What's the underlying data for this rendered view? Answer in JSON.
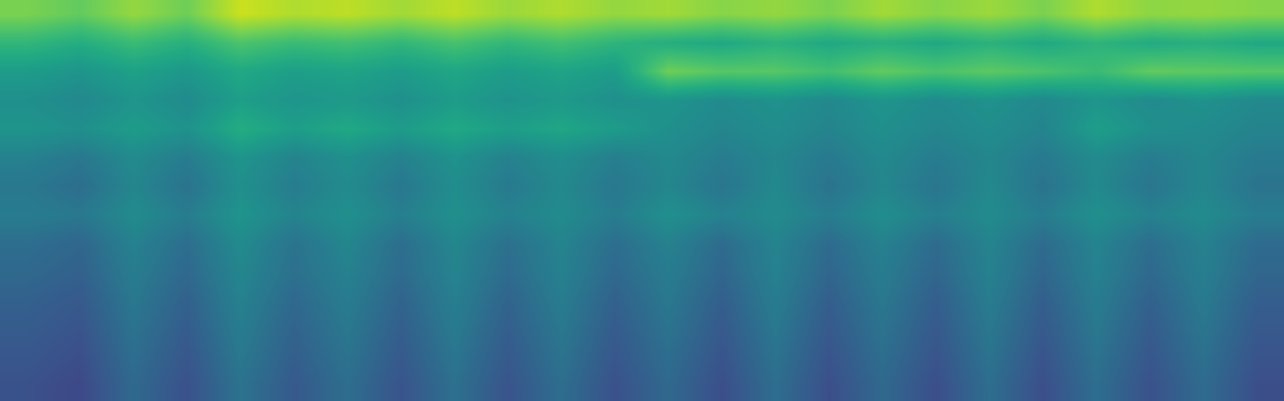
{
  "chart_data": {
    "type": "heatmap",
    "color": "viridis",
    "tick_labels": false,
    "color_range": [
      0,
      1
    ],
    "cells": [
      [
        0.8,
        0.76,
        0.84,
        0.78,
        0.92,
        0.88,
        0.9,
        0.86,
        0.9,
        0.85,
        0.88,
        0.84,
        0.86,
        0.82,
        0.84,
        0.8,
        0.86,
        0.82,
        0.85,
        0.8,
        0.88,
        0.83,
        0.84,
        0.82
      ],
      [
        0.66,
        0.62,
        0.68,
        0.63,
        0.72,
        0.68,
        0.7,
        0.66,
        0.71,
        0.66,
        0.7,
        0.65,
        0.62,
        0.6,
        0.64,
        0.6,
        0.63,
        0.6,
        0.64,
        0.6,
        0.65,
        0.61,
        0.63,
        0.6
      ],
      [
        0.55,
        0.52,
        0.57,
        0.53,
        0.6,
        0.56,
        0.58,
        0.55,
        0.59,
        0.55,
        0.58,
        0.55,
        0.78,
        0.74,
        0.74,
        0.7,
        0.76,
        0.72,
        0.75,
        0.72,
        0.68,
        0.76,
        0.75,
        0.74
      ],
      [
        0.5,
        0.47,
        0.52,
        0.48,
        0.56,
        0.52,
        0.54,
        0.5,
        0.55,
        0.51,
        0.54,
        0.5,
        0.52,
        0.48,
        0.51,
        0.47,
        0.52,
        0.48,
        0.51,
        0.47,
        0.52,
        0.48,
        0.51,
        0.47
      ],
      [
        0.52,
        0.5,
        0.55,
        0.51,
        0.62,
        0.56,
        0.6,
        0.55,
        0.6,
        0.56,
        0.59,
        0.55,
        0.5,
        0.46,
        0.49,
        0.45,
        0.5,
        0.46,
        0.49,
        0.45,
        0.56,
        0.5,
        0.48,
        0.45
      ],
      [
        0.44,
        0.4,
        0.48,
        0.42,
        0.52,
        0.45,
        0.5,
        0.44,
        0.51,
        0.44,
        0.49,
        0.43,
        0.47,
        0.42,
        0.46,
        0.41,
        0.47,
        0.42,
        0.46,
        0.41,
        0.48,
        0.42,
        0.46,
        0.41
      ],
      [
        0.4,
        0.36,
        0.46,
        0.38,
        0.5,
        0.42,
        0.48,
        0.4,
        0.49,
        0.41,
        0.47,
        0.4,
        0.46,
        0.39,
        0.47,
        0.38,
        0.46,
        0.39,
        0.47,
        0.38,
        0.47,
        0.39,
        0.46,
        0.38
      ],
      [
        0.42,
        0.4,
        0.48,
        0.42,
        0.52,
        0.45,
        0.5,
        0.43,
        0.5,
        0.44,
        0.48,
        0.42,
        0.5,
        0.44,
        0.48,
        0.42,
        0.49,
        0.43,
        0.48,
        0.42,
        0.5,
        0.44,
        0.48,
        0.42
      ],
      [
        0.36,
        0.33,
        0.44,
        0.36,
        0.48,
        0.38,
        0.46,
        0.36,
        0.46,
        0.37,
        0.45,
        0.36,
        0.44,
        0.35,
        0.45,
        0.35,
        0.44,
        0.35,
        0.45,
        0.35,
        0.45,
        0.36,
        0.44,
        0.35
      ],
      [
        0.34,
        0.31,
        0.42,
        0.34,
        0.46,
        0.37,
        0.44,
        0.35,
        0.45,
        0.35,
        0.44,
        0.34,
        0.42,
        0.33,
        0.44,
        0.33,
        0.42,
        0.33,
        0.44,
        0.33,
        0.44,
        0.34,
        0.43,
        0.33
      ],
      [
        0.31,
        0.28,
        0.4,
        0.31,
        0.44,
        0.34,
        0.42,
        0.32,
        0.43,
        0.32,
        0.42,
        0.31,
        0.4,
        0.3,
        0.42,
        0.3,
        0.4,
        0.3,
        0.42,
        0.3,
        0.42,
        0.31,
        0.41,
        0.3
      ],
      [
        0.29,
        0.26,
        0.38,
        0.29,
        0.42,
        0.32,
        0.4,
        0.3,
        0.41,
        0.3,
        0.4,
        0.29,
        0.38,
        0.28,
        0.4,
        0.28,
        0.38,
        0.28,
        0.4,
        0.28,
        0.4,
        0.29,
        0.39,
        0.28
      ],
      [
        0.27,
        0.24,
        0.36,
        0.27,
        0.4,
        0.3,
        0.38,
        0.28,
        0.39,
        0.28,
        0.38,
        0.27,
        0.36,
        0.26,
        0.38,
        0.26,
        0.36,
        0.26,
        0.38,
        0.26,
        0.38,
        0.27,
        0.37,
        0.26
      ],
      [
        0.25,
        0.22,
        0.34,
        0.25,
        0.38,
        0.28,
        0.36,
        0.26,
        0.37,
        0.26,
        0.36,
        0.25,
        0.34,
        0.24,
        0.36,
        0.24,
        0.34,
        0.24,
        0.36,
        0.24,
        0.36,
        0.25,
        0.35,
        0.24
      ]
    ]
  }
}
